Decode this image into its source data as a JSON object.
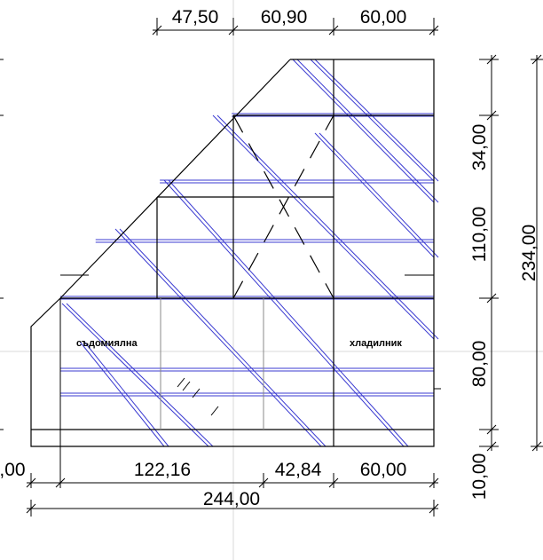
{
  "dimensions": {
    "top": [
      "47,50",
      "60,90",
      "60,00"
    ],
    "bottom_row1": [
      ",00",
      "122,16",
      "42,84",
      "60,00"
    ],
    "bottom_total": "244,00",
    "right_inner": [
      "34,00",
      "110,00",
      "80,00",
      "10,00"
    ],
    "right_total": "234,00"
  },
  "labels": {
    "dishwasher": "съдомиялна",
    "fridge": "хладилник"
  },
  "colors": {
    "lines": "#000000",
    "tile_lines": "#3b3bd1",
    "guides": "#d9d9d9"
  }
}
